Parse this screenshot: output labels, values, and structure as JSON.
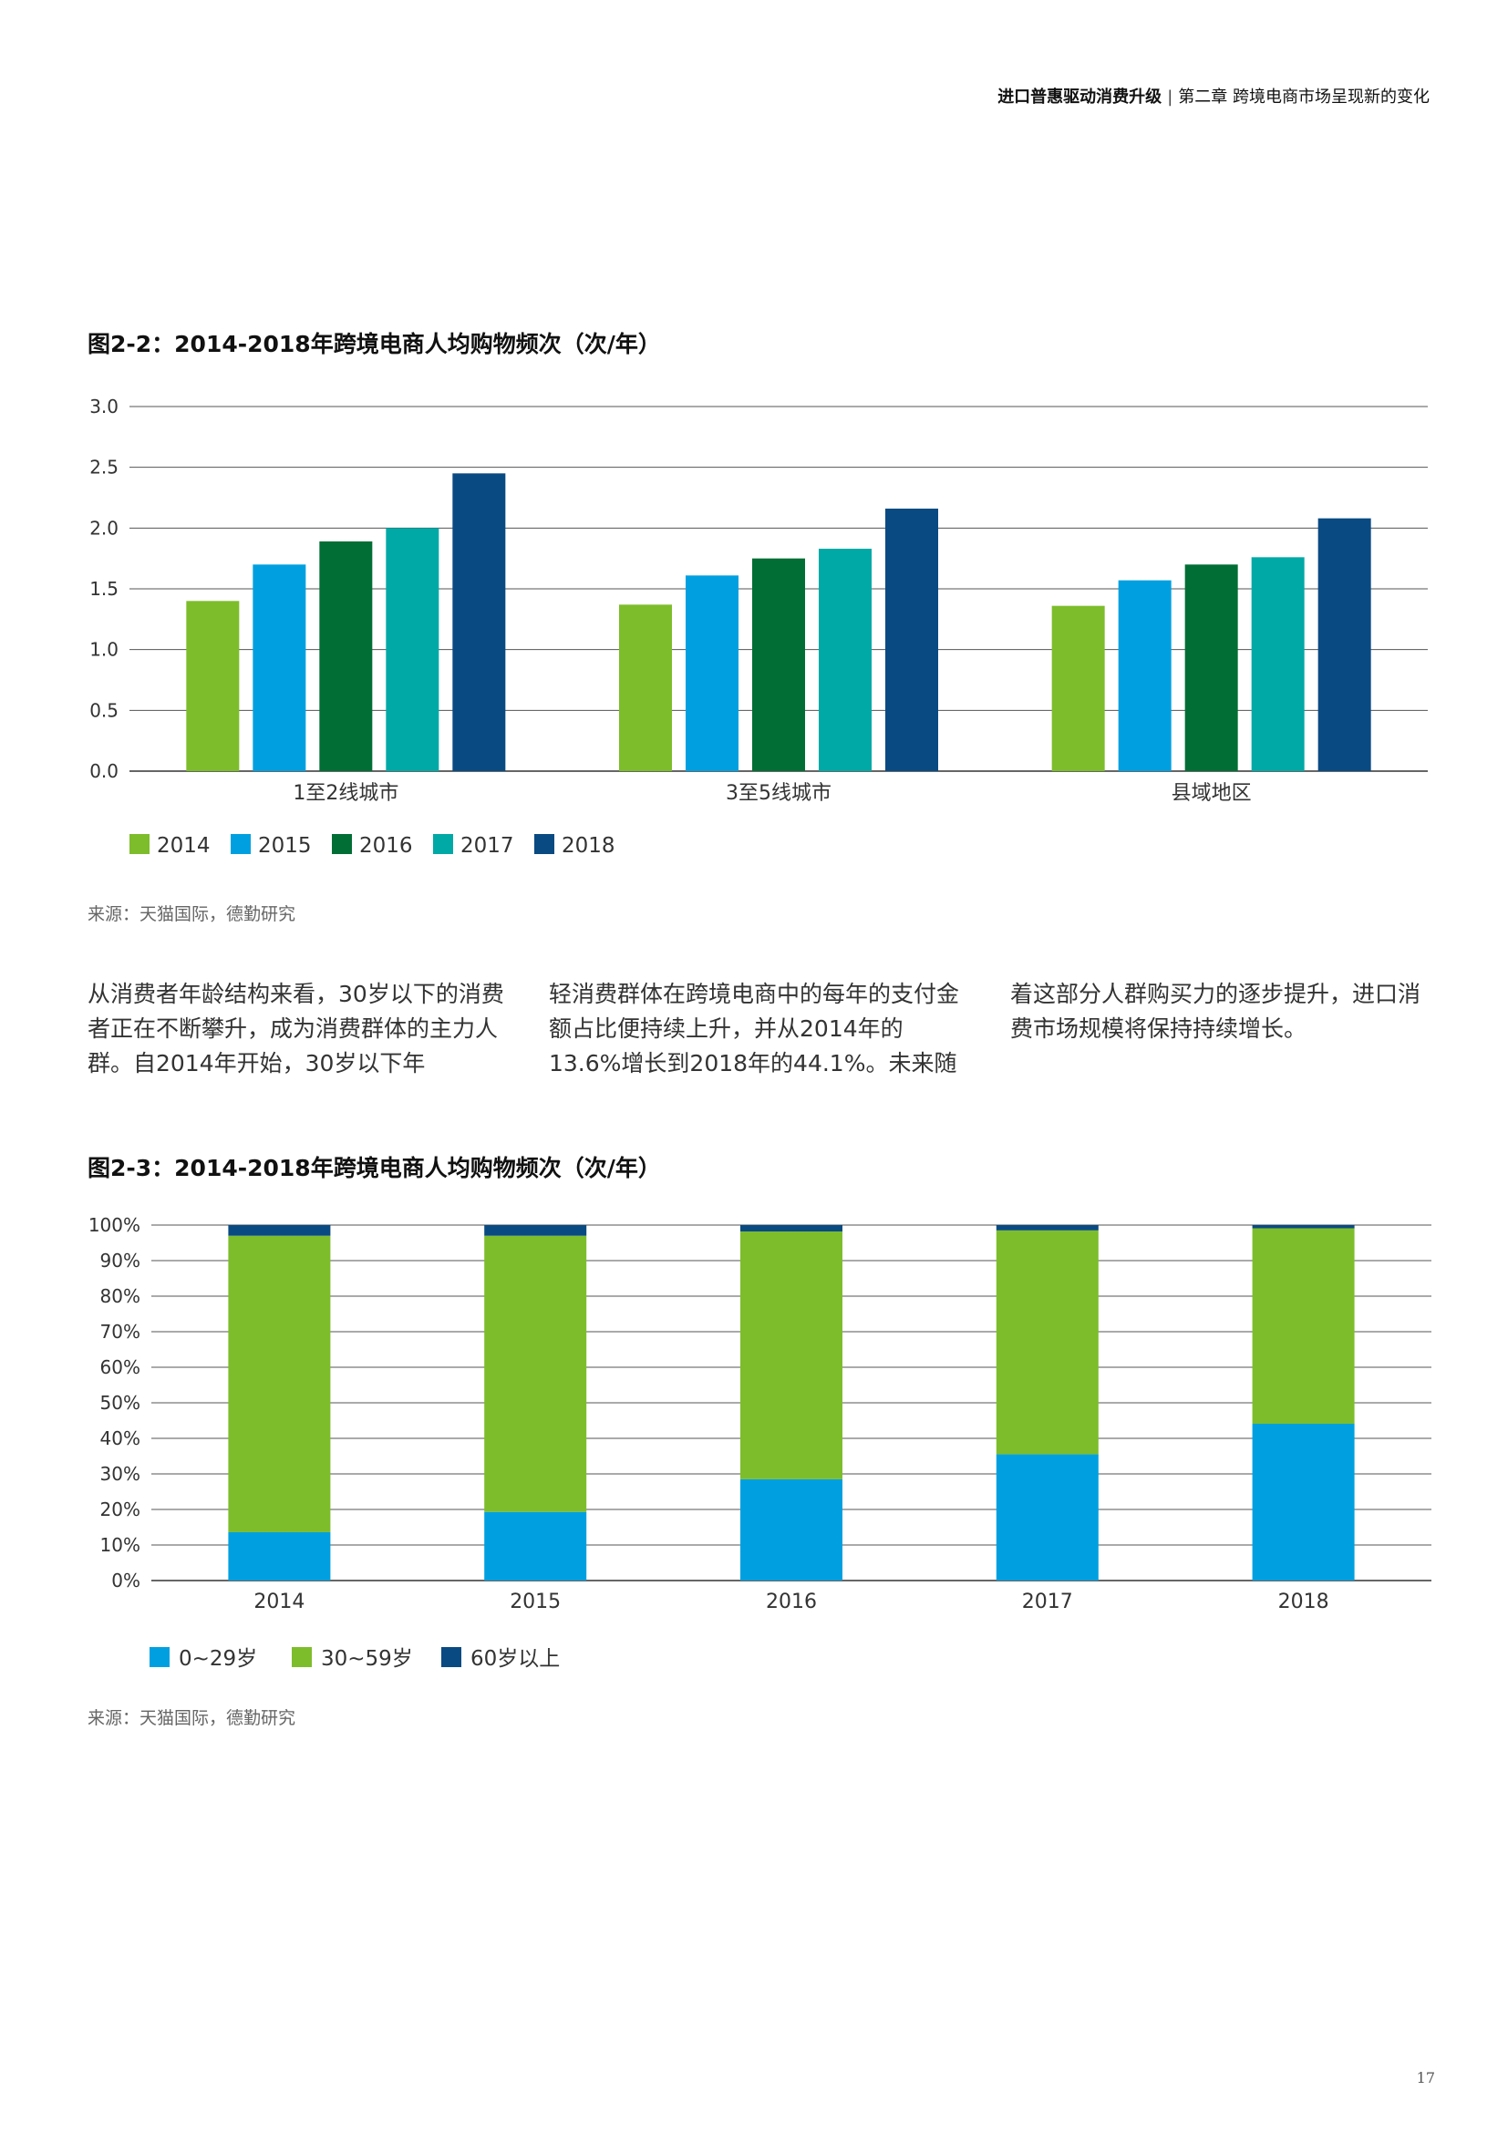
{
  "header": {
    "report_title": "进口普惠驱动消费升级",
    "separator": "|",
    "chapter": "第二章 跨境电商市场呈现新的变化"
  },
  "figure1": {
    "title": "图2-2：2014-2018年跨境电商人均购物频次（次/年）",
    "source": "来源：天猫国际，德勤研究"
  },
  "figure2": {
    "title": "图2-3：2014-2018年跨境电商人均购物频次（次/年）",
    "source": "来源：天猫国际，德勤研究"
  },
  "paragraph": {
    "col1": "从消费者年龄结构来看，30岁以下的消费者正在不断攀升，成为消费群体的主力人群。自2014年开始，30岁以下年",
    "col2": "轻消费群体在跨境电商中的每年的支付金额占比便持续上升，并从2014年的13.6%增长到2018年的44.1%。未来随",
    "col3": "着这部分人群购买力的逐步提升，进口消费市场规模将保持持续增长。"
  },
  "page_number": "17",
  "colors": {
    "2014": "#7dbd2b",
    "2015": "#00a0e0",
    "2016": "#006e35",
    "2017": "#00a9a6",
    "2018": "#0a4a82",
    "age_0_29": "#00a0e0",
    "age_30_59": "#7dbd2b",
    "age_60_plus": "#0a4a82"
  },
  "chart_data": [
    {
      "type": "bar",
      "title": "图2-2：2014-2018年跨境电商人均购物频次（次/年）",
      "categories": [
        "1至2线城市",
        "3至5线城市",
        "县域地区"
      ],
      "series": [
        {
          "name": "2014",
          "values": [
            1.4,
            1.37,
            1.36
          ]
        },
        {
          "name": "2015",
          "values": [
            1.7,
            1.61,
            1.57
          ]
        },
        {
          "name": "2016",
          "values": [
            1.89,
            1.75,
            1.7
          ]
        },
        {
          "name": "2017",
          "values": [
            2.0,
            1.83,
            1.76
          ]
        },
        {
          "name": "2018",
          "values": [
            2.45,
            2.16,
            2.08
          ]
        }
      ],
      "ylim": [
        0,
        3
      ],
      "yticks": [
        "0.0",
        "0.5",
        "1.0",
        "1.5",
        "2.0",
        "2.5",
        "3.0"
      ],
      "xlabel": "",
      "ylabel": "",
      "legend": "bottom-left"
    },
    {
      "type": "bar",
      "stacked": true,
      "title": "图2-3：2014-2018年跨境电商人均购物频次（次/年）",
      "categories": [
        "2014",
        "2015",
        "2016",
        "2017",
        "2018"
      ],
      "series": [
        {
          "name": "0~29岁",
          "values": [
            13.6,
            19.3,
            28.5,
            35.5,
            44.1
          ]
        },
        {
          "name": "30~59岁",
          "values": [
            83.4,
            77.7,
            69.7,
            63.0,
            55.0
          ]
        },
        {
          "name": "60岁以上",
          "values": [
            3.0,
            3.0,
            1.8,
            1.5,
            0.9
          ]
        }
      ],
      "ylim": [
        0,
        100
      ],
      "yticks": [
        "0%",
        "10%",
        "20%",
        "30%",
        "40%",
        "50%",
        "60%",
        "70%",
        "80%",
        "90%",
        "100%"
      ],
      "xlabel": "",
      "ylabel": "",
      "legend": "bottom-left"
    }
  ]
}
